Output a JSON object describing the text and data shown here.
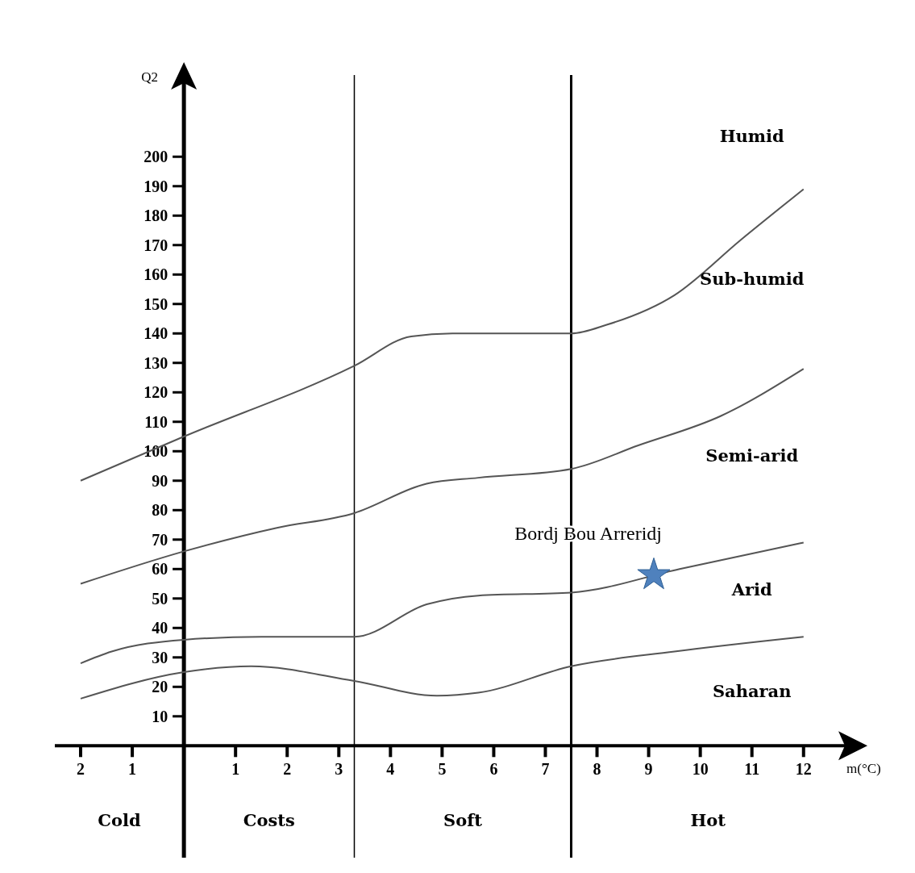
{
  "chart_data": {
    "type": "line",
    "xlabel": "m(°C)",
    "ylabel": "Q2",
    "xlim": [
      -2.5,
      12.8
    ],
    "ylim": [
      -38,
      225
    ],
    "xticks": [
      {
        "value": -2,
        "label": "2"
      },
      {
        "value": -1,
        "label": "1"
      },
      1,
      2,
      3,
      4,
      5,
      6,
      7,
      8,
      9,
      10,
      11,
      12
    ],
    "yticks": [
      10,
      20,
      30,
      40,
      50,
      60,
      70,
      80,
      90,
      100,
      110,
      120,
      130,
      140,
      150,
      160,
      170,
      180,
      190,
      200
    ],
    "grid": false,
    "legend": false,
    "marker": "none",
    "line_style": "solid",
    "ref_lines": [
      {
        "axis": "x",
        "value": 3.3,
        "label": null
      },
      {
        "axis": "x",
        "value": 7.5,
        "label": null
      }
    ],
    "annotations": [
      "Humid",
      "Sub-humid",
      "Semi-arid",
      "Arid",
      "Saharan",
      "Cold",
      "Costs",
      "Soft",
      "Hot"
    ],
    "series": [
      {
        "color": "#555555",
        "x": [
          -2,
          0,
          3.3,
          4.4,
          5.2,
          5.6,
          7.5,
          8.2,
          9.5,
          10.8,
          12
        ],
        "values": [
          90,
          105,
          129,
          139,
          140,
          140,
          140,
          143,
          153,
          172,
          189
        ]
      },
      {
        "color": "#555555",
        "x": [
          -2,
          0,
          1.8,
          3.3,
          4.7,
          5.7,
          7.5,
          8.8,
          10.4,
          12
        ],
        "values": [
          55,
          66,
          74,
          79,
          89,
          91,
          94,
          102,
          112,
          128
        ]
      },
      {
        "color": "#555555",
        "x": [
          -2,
          -1.4,
          0,
          1.5,
          3.3,
          4.7,
          5.7,
          7.5,
          9.6,
          12
        ],
        "values": [
          28,
          32,
          36,
          37,
          37,
          48,
          51,
          52,
          60,
          69
        ]
      },
      {
        "color": "#555555",
        "x": [
          -2,
          0,
          1.3,
          3.3,
          4.9,
          5.7,
          7.5,
          9.5,
          12
        ],
        "values": [
          16,
          25,
          27,
          22,
          17,
          18,
          27,
          32,
          37
        ]
      },
      {
        "type": "scatter",
        "name": "Bordj Bou Arreridj",
        "color": "#4f81bd",
        "marker": "star",
        "x": [
          9.1
        ],
        "values": [
          58
        ]
      }
    ]
  }
}
